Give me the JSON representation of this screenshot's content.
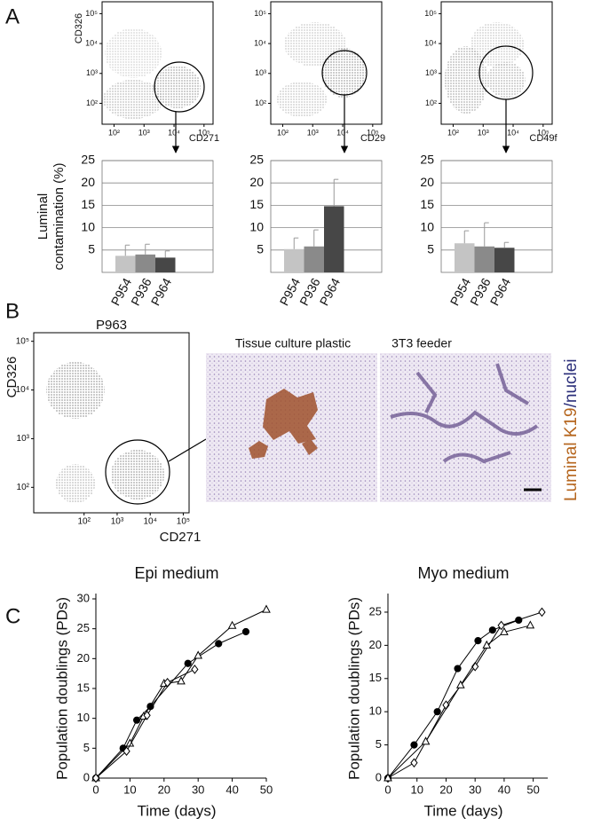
{
  "panel_labels": [
    "A",
    "B",
    "C"
  ],
  "flow_plots": [
    {
      "x_label": "CD271",
      "y_label": "CD326",
      "xlim": [
        40,
        200000
      ],
      "ylim": [
        20,
        250000
      ],
      "xticks": [
        {
          "value": 100,
          "label": "10²"
        },
        {
          "value": 1000,
          "label": "10³"
        },
        {
          "value": 10000,
          "label": "10⁴"
        },
        {
          "value": 100000,
          "label": "10⁵"
        }
      ],
      "yticks": [
        {
          "value": 100,
          "label": "10²"
        },
        {
          "value": 1000,
          "label": "10³"
        },
        {
          "value": 10000,
          "label": "10⁴"
        },
        {
          "value": 100000,
          "label": "10⁵"
        }
      ]
    },
    {
      "x_label": "CD29",
      "xlim": [
        40,
        200000
      ],
      "ylim": [
        20,
        250000
      ],
      "xticks": [
        {
          "value": 100,
          "label": "10²"
        },
        {
          "value": 1000,
          "label": "10³"
        },
        {
          "value": 10000,
          "label": "10⁴"
        },
        {
          "value": 100000,
          "label": "10⁵"
        }
      ],
      "yticks": [
        {
          "value": 100,
          "label": "10²"
        },
        {
          "value": 1000,
          "label": "10³"
        },
        {
          "value": 10000,
          "label": "10⁴"
        },
        {
          "value": 100000,
          "label": "10⁵"
        }
      ]
    },
    {
      "x_label": "CD49f",
      "xlim": [
        40,
        200000
      ],
      "ylim": [
        20,
        250000
      ],
      "xticks": [
        {
          "value": 100,
          "label": "10²"
        },
        {
          "value": 1000,
          "label": "10³"
        },
        {
          "value": 10000,
          "label": "10⁴"
        },
        {
          "value": 100000,
          "label": "10⁵"
        }
      ],
      "yticks": [
        {
          "value": 100,
          "label": "10²"
        },
        {
          "value": 1000,
          "label": "10³"
        },
        {
          "value": 10000,
          "label": "10⁴"
        },
        {
          "value": 100000,
          "label": "10⁵"
        }
      ]
    },
    {
      "title": "P963",
      "x_label": "CD271",
      "y_label": "CD326",
      "xlim": [
        3,
        150000
      ],
      "ylim": [
        30,
        150000
      ],
      "xticks": [
        {
          "value": 100,
          "label": "10²"
        },
        {
          "value": 1000,
          "label": "10³"
        },
        {
          "value": 10000,
          "label": "10⁴"
        },
        {
          "value": 100000,
          "label": "10⁵"
        }
      ],
      "yticks": [
        {
          "value": 100,
          "label": "10²"
        },
        {
          "value": 1000,
          "label": "10³"
        },
        {
          "value": 10000,
          "label": "10⁴"
        },
        {
          "value": 100000,
          "label": "10⁵"
        }
      ]
    }
  ],
  "images": {
    "left_caption": "Tissue culture plastic",
    "right_caption": "3T3 feeder",
    "stain_label": "Luminal K19",
    "nuclei_label": "/nuclei"
  },
  "chart_data": [
    {
      "type": "bar",
      "y_label": [
        "Luminal",
        "contamination (%)"
      ],
      "categories": [
        "P954",
        "P936",
        "P964"
      ],
      "values": [
        3.7,
        4.0,
        3.3
      ],
      "errors": [
        2.4,
        2.3,
        1.5
      ],
      "colors": [
        "#c4c4c4",
        "#8a8a8a",
        "#474747"
      ],
      "ylim": [
        0,
        25
      ],
      "yticks": [
        5,
        10,
        15,
        20,
        25
      ],
      "grid": true
    },
    {
      "type": "bar",
      "categories": [
        "P954",
        "P936",
        "P964"
      ],
      "values": [
        5.2,
        5.8,
        14.8
      ],
      "errors": [
        2.5,
        3.7,
        6.0
      ],
      "colors": [
        "#c4c4c4",
        "#8a8a8a",
        "#474747"
      ],
      "ylim": [
        0,
        25
      ],
      "yticks": [
        5,
        10,
        15,
        20,
        25
      ],
      "grid": true
    },
    {
      "type": "bar",
      "categories": [
        "P954",
        "P936",
        "P964"
      ],
      "values": [
        6.5,
        5.8,
        5.5
      ],
      "errors": [
        2.8,
        5.3,
        1.2
      ],
      "colors": [
        "#c4c4c4",
        "#8a8a8a",
        "#474747"
      ],
      "ylim": [
        0,
        25
      ],
      "yticks": [
        5,
        10,
        15,
        20,
        25
      ],
      "grid": true
    },
    {
      "type": "line",
      "title": "Epi medium",
      "x_label": "Time (days)",
      "y_label": "Population doublings (PDs)",
      "xlim": [
        0,
        50
      ],
      "ylim": [
        0,
        30
      ],
      "xticks": [
        0,
        10,
        20,
        30,
        40,
        50
      ],
      "yticks": [
        0,
        5,
        10,
        15,
        20,
        25,
        30
      ],
      "series": [
        {
          "marker": "circle",
          "filled": true,
          "color": "#000000",
          "x": [
            0,
            8,
            12,
            16,
            27,
            36,
            44
          ],
          "values": [
            0,
            5,
            9.7,
            12,
            19.2,
            22.5,
            24.5
          ]
        },
        {
          "marker": "triangle",
          "filled": false,
          "color": "#000000",
          "x": [
            0,
            10,
            14,
            20,
            25,
            30,
            40,
            50
          ],
          "values": [
            0,
            5.8,
            10.3,
            15.8,
            16.2,
            20.5,
            25.5,
            28.2
          ]
        },
        {
          "marker": "diamond",
          "filled": false,
          "color": "#000000",
          "x": [
            0,
            9,
            15,
            21,
            29
          ],
          "values": [
            0,
            4.5,
            10.5,
            16,
            18.2
          ]
        }
      ]
    },
    {
      "type": "line",
      "title": "Myo medium",
      "x_label": "Time (days)",
      "y_label": "Population doublings (PDs)",
      "xlim": [
        0,
        55
      ],
      "ylim": [
        0,
        27
      ],
      "xticks": [
        0,
        10,
        20,
        30,
        40,
        50
      ],
      "yticks": [
        0,
        5,
        10,
        15,
        20,
        25
      ],
      "series": [
        {
          "marker": "circle",
          "filled": true,
          "color": "#000000",
          "x": [
            0,
            9,
            17,
            24,
            31,
            36,
            45
          ],
          "values": [
            0,
            5,
            10,
            16.5,
            20.7,
            22.3,
            23.8
          ]
        },
        {
          "marker": "diamond",
          "filled": false,
          "color": "#000000",
          "x": [
            0,
            9,
            20,
            30,
            39,
            53
          ],
          "values": [
            0,
            2.3,
            11,
            16.8,
            23,
            25
          ]
        },
        {
          "marker": "triangle",
          "filled": false,
          "color": "#000000",
          "x": [
            0,
            13,
            25,
            34,
            40,
            49
          ],
          "values": [
            0,
            5.5,
            14,
            20,
            22,
            23
          ]
        }
      ]
    }
  ]
}
